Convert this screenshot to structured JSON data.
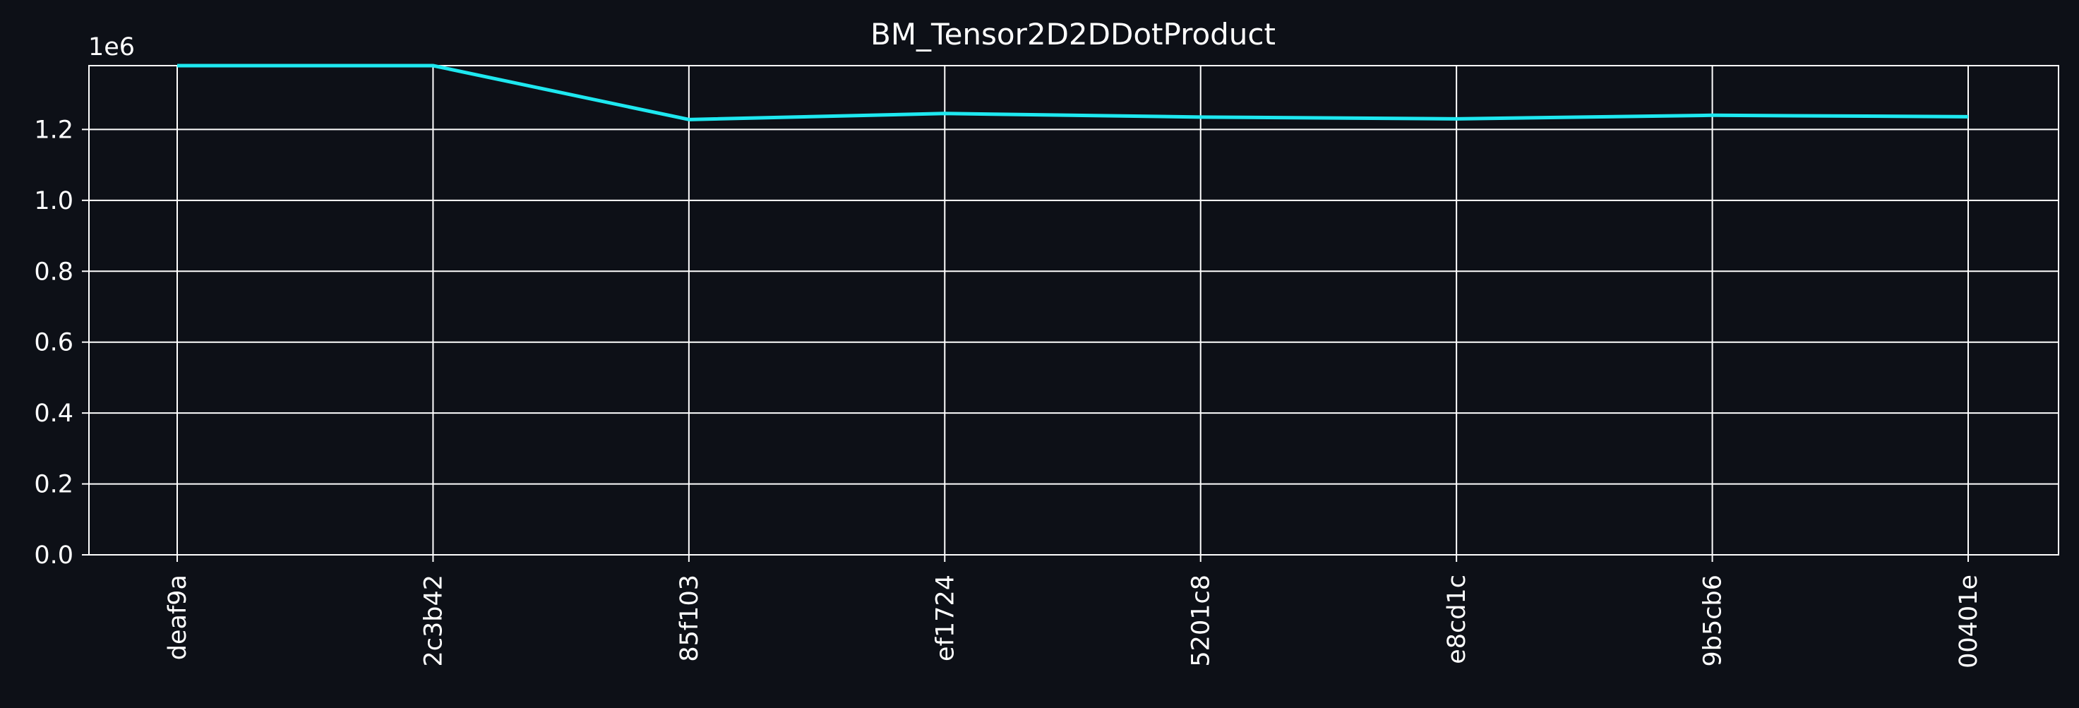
{
  "chart_data": {
    "type": "line",
    "title": "BM_Tensor2D2DDotProduct",
    "xlabel": "",
    "ylabel": "",
    "y_scale_label": "1e6",
    "categories": [
      "deaf9a",
      "2c3b42",
      "85f103",
      "ef1724",
      "5201c8",
      "e8cd1c",
      "9b5cb6",
      "00401e"
    ],
    "series": [
      {
        "values": [
          1380000,
          1380000,
          1228000,
          1245000,
          1235000,
          1230000,
          1240000,
          1236000
        ]
      }
    ],
    "ylim": [
      0,
      1380000
    ],
    "yticks": [
      0,
      200000,
      400000,
      600000,
      800000,
      1000000,
      1200000
    ],
    "ytick_labels": [
      "0.0",
      "0.2",
      "0.4",
      "0.6",
      "0.8",
      "1.0",
      "1.2"
    ],
    "grid": true,
    "legend": "none",
    "colors": {
      "background": "#0d1017",
      "line": "#1ee8f0",
      "grid": "#ffffff",
      "text": "#ffffff"
    }
  }
}
